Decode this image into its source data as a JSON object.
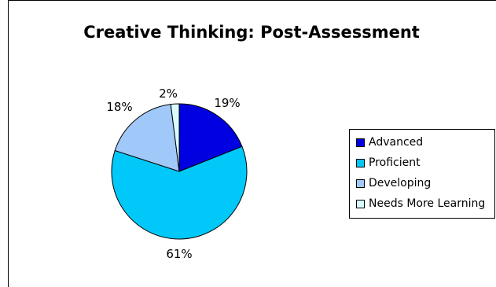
{
  "chart_data": {
    "type": "pie",
    "title": "Creative Thinking: Post-Assessment",
    "categories": [
      "Advanced",
      "Proficient",
      "Developing",
      "Needs More Learning"
    ],
    "values": [
      19,
      61,
      18,
      2
    ],
    "value_labels": [
      "19%",
      "61%",
      "18%",
      "2%"
    ],
    "colors": [
      "#0000e0",
      "#00c8f8",
      "#a0c8f8",
      "#d8fcfc"
    ],
    "legend_position": "right"
  }
}
